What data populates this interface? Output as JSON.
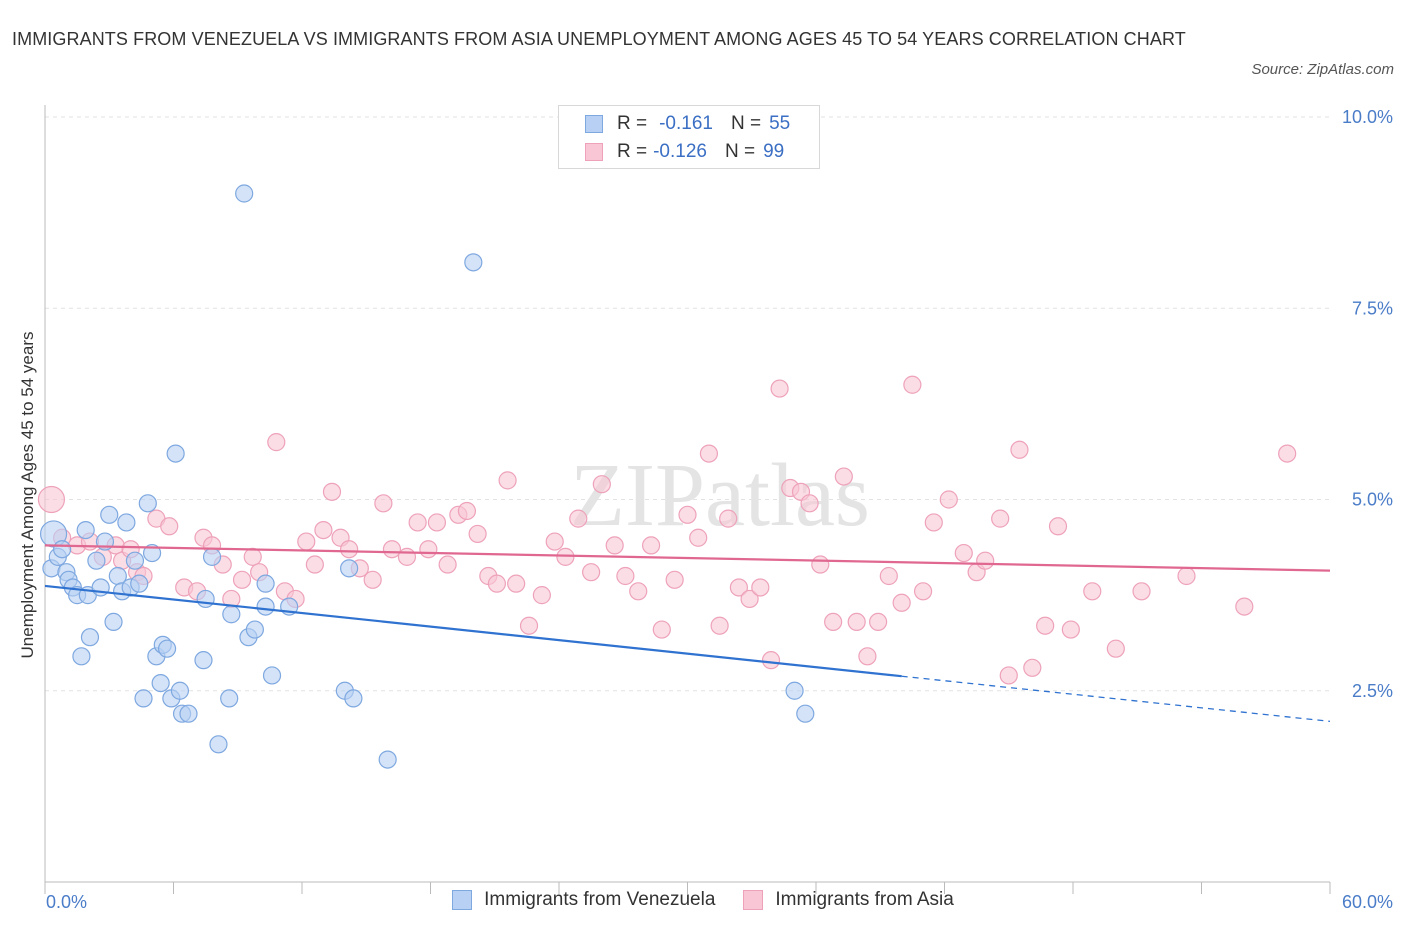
{
  "header": {
    "title": "IMMIGRANTS FROM VENEZUELA VS IMMIGRANTS FROM ASIA UNEMPLOYMENT AMONG AGES 45 TO 54 YEARS CORRELATION CHART",
    "source": "Source: ZipAtlas.com"
  },
  "watermark": "ZIPatlas",
  "legend": {
    "venezuela": {
      "r_label": "R =",
      "r_value": "-0.161",
      "n_label": "N =",
      "n_value": "55"
    },
    "asia": {
      "r_label": "R =",
      "r_value": "-0.126",
      "n_label": "N =",
      "n_value": "99"
    }
  },
  "colors": {
    "venezuela_fill": "#b7d0f3",
    "venezuela_stroke": "#7ea8e0",
    "venezuela_line": "#2f72d0",
    "asia_fill": "#f8c6d5",
    "asia_stroke": "#eea2ba",
    "asia_line": "#e06890",
    "tick_text": "#4a7cc8"
  },
  "chart_data": {
    "type": "scatter",
    "title": "IMMIGRANTS FROM VENEZUELA VS IMMIGRANTS FROM ASIA UNEMPLOYMENT AMONG AGES 45 TO 54 YEARS CORRELATION CHART",
    "xlabel": "",
    "ylabel": "Unemployment Among Ages 45 to 54 years",
    "xlim": [
      0,
      60
    ],
    "ylim": [
      0,
      10.5
    ],
    "x_tick_labels": [
      "0.0%",
      "60.0%"
    ],
    "y_ticks": [
      2.5,
      5.0,
      7.5,
      10.0
    ],
    "y_tick_labels": [
      "2.5%",
      "5.0%",
      "7.5%",
      "10.0%"
    ],
    "grid": true,
    "legend_position": "top-center",
    "series": [
      {
        "name": "Immigrants from Venezuela",
        "r": -0.161,
        "n": 55,
        "trend": {
          "x0": 0,
          "y0": 3.87,
          "x1": 40,
          "y1": 2.69,
          "dash_x1": 60,
          "dash_y1": 2.1
        },
        "points": [
          [
            0.4,
            4.55
          ],
          [
            0.3,
            4.1
          ],
          [
            0.6,
            4.25
          ],
          [
            0.8,
            4.35
          ],
          [
            1.0,
            4.05
          ],
          [
            1.1,
            3.95
          ],
          [
            1.3,
            3.85
          ],
          [
            1.5,
            3.75
          ],
          [
            1.7,
            2.95
          ],
          [
            1.9,
            4.6
          ],
          [
            2.0,
            3.75
          ],
          [
            2.1,
            3.2
          ],
          [
            2.4,
            4.2
          ],
          [
            2.6,
            3.85
          ],
          [
            2.8,
            4.45
          ],
          [
            3.0,
            4.8
          ],
          [
            3.2,
            3.4
          ],
          [
            3.4,
            4.0
          ],
          [
            3.6,
            3.8
          ],
          [
            3.8,
            4.7
          ],
          [
            4.0,
            3.85
          ],
          [
            4.2,
            4.2
          ],
          [
            4.4,
            3.9
          ],
          [
            4.6,
            2.4
          ],
          [
            4.8,
            4.95
          ],
          [
            5.0,
            4.3
          ],
          [
            5.2,
            2.95
          ],
          [
            5.4,
            2.6
          ],
          [
            5.5,
            3.1
          ],
          [
            5.7,
            3.05
          ],
          [
            5.9,
            2.4
          ],
          [
            6.1,
            5.6
          ],
          [
            6.3,
            2.5
          ],
          [
            6.4,
            2.2
          ],
          [
            6.7,
            2.2
          ],
          [
            7.4,
            2.9
          ],
          [
            7.5,
            3.7
          ],
          [
            7.8,
            4.25
          ],
          [
            8.1,
            1.8
          ],
          [
            8.6,
            2.4
          ],
          [
            8.7,
            3.5
          ],
          [
            9.3,
            9.0
          ],
          [
            9.5,
            3.2
          ],
          [
            9.8,
            3.3
          ],
          [
            10.3,
            3.9
          ],
          [
            10.3,
            3.6
          ],
          [
            10.6,
            2.7
          ],
          [
            11.4,
            3.6
          ],
          [
            14.0,
            2.5
          ],
          [
            14.2,
            4.1
          ],
          [
            14.4,
            2.4
          ],
          [
            16.0,
            1.6
          ],
          [
            20.0,
            8.1
          ],
          [
            35.0,
            2.5
          ],
          [
            35.5,
            2.2
          ]
        ]
      },
      {
        "name": "Immigrants from Asia",
        "r": -0.126,
        "n": 99,
        "trend": {
          "x0": 0,
          "y0": 4.4,
          "x1": 60,
          "y1": 4.07
        },
        "points": [
          [
            0.3,
            5.0
          ],
          [
            0.8,
            4.5
          ],
          [
            1.5,
            4.4
          ],
          [
            2.1,
            4.45
          ],
          [
            2.7,
            4.25
          ],
          [
            3.3,
            4.4
          ],
          [
            3.6,
            4.2
          ],
          [
            4.0,
            4.35
          ],
          [
            4.3,
            4.05
          ],
          [
            4.6,
            4.0
          ],
          [
            5.2,
            4.75
          ],
          [
            5.8,
            4.65
          ],
          [
            6.5,
            3.85
          ],
          [
            7.1,
            3.8
          ],
          [
            7.4,
            4.5
          ],
          [
            7.8,
            4.4
          ],
          [
            8.3,
            4.15
          ],
          [
            8.7,
            3.7
          ],
          [
            9.2,
            3.95
          ],
          [
            9.7,
            4.25
          ],
          [
            10.0,
            4.05
          ],
          [
            10.8,
            5.75
          ],
          [
            11.2,
            3.8
          ],
          [
            11.7,
            3.7
          ],
          [
            12.2,
            4.45
          ],
          [
            12.6,
            4.15
          ],
          [
            13.0,
            4.6
          ],
          [
            13.4,
            5.1
          ],
          [
            13.8,
            4.5
          ],
          [
            14.2,
            4.35
          ],
          [
            14.7,
            4.1
          ],
          [
            15.3,
            3.95
          ],
          [
            15.8,
            4.95
          ],
          [
            16.2,
            4.35
          ],
          [
            16.9,
            4.25
          ],
          [
            17.4,
            4.7
          ],
          [
            17.9,
            4.35
          ],
          [
            18.3,
            4.7
          ],
          [
            18.8,
            4.15
          ],
          [
            19.3,
            4.8
          ],
          [
            19.7,
            4.85
          ],
          [
            20.2,
            4.55
          ],
          [
            20.7,
            4.0
          ],
          [
            21.1,
            3.9
          ],
          [
            21.6,
            5.25
          ],
          [
            22.0,
            3.9
          ],
          [
            22.6,
            3.35
          ],
          [
            23.2,
            3.75
          ],
          [
            23.8,
            4.45
          ],
          [
            24.3,
            4.25
          ],
          [
            24.9,
            4.75
          ],
          [
            25.5,
            4.05
          ],
          [
            26.0,
            5.2
          ],
          [
            26.6,
            4.4
          ],
          [
            27.1,
            4.0
          ],
          [
            27.7,
            3.8
          ],
          [
            28.3,
            4.4
          ],
          [
            28.8,
            3.3
          ],
          [
            29.4,
            3.95
          ],
          [
            30.0,
            4.8
          ],
          [
            30.5,
            4.5
          ],
          [
            31.0,
            5.6
          ],
          [
            31.5,
            3.35
          ],
          [
            31.9,
            4.75
          ],
          [
            32.4,
            3.85
          ],
          [
            32.9,
            3.7
          ],
          [
            33.4,
            3.85
          ],
          [
            33.9,
            2.9
          ],
          [
            34.3,
            6.45
          ],
          [
            34.8,
            5.15
          ],
          [
            35.3,
            5.1
          ],
          [
            35.7,
            4.95
          ],
          [
            36.2,
            4.15
          ],
          [
            36.8,
            3.4
          ],
          [
            37.3,
            5.3
          ],
          [
            37.9,
            3.4
          ],
          [
            38.4,
            2.95
          ],
          [
            38.9,
            3.4
          ],
          [
            39.4,
            4.0
          ],
          [
            40.0,
            3.65
          ],
          [
            40.5,
            6.5
          ],
          [
            41.0,
            3.8
          ],
          [
            41.5,
            4.7
          ],
          [
            42.2,
            5.0
          ],
          [
            42.9,
            4.3
          ],
          [
            43.5,
            4.05
          ],
          [
            43.9,
            4.2
          ],
          [
            44.6,
            4.75
          ],
          [
            45.0,
            2.7
          ],
          [
            45.5,
            5.65
          ],
          [
            46.1,
            2.8
          ],
          [
            46.7,
            3.35
          ],
          [
            47.3,
            4.65
          ],
          [
            47.9,
            3.3
          ],
          [
            48.9,
            3.8
          ],
          [
            50.0,
            3.05
          ],
          [
            51.2,
            3.8
          ],
          [
            53.3,
            4.0
          ],
          [
            56.0,
            3.6
          ],
          [
            58.0,
            5.6
          ]
        ]
      }
    ]
  },
  "x_axis": {
    "left_label": "0.0%",
    "right_label": "60.0%"
  },
  "bottom_legend": {
    "venezuela_label": "Immigrants from Venezuela",
    "asia_label": "Immigrants from Asia"
  }
}
